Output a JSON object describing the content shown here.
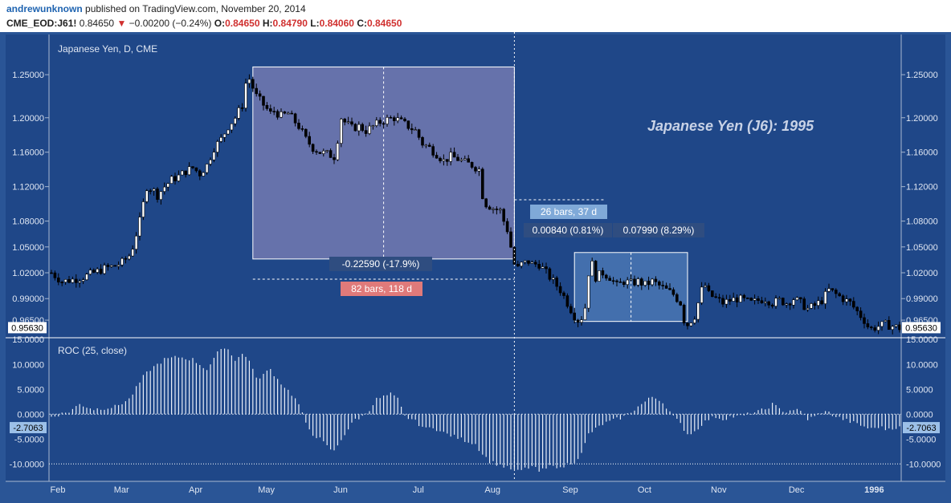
{
  "header": {
    "author": "andrewunknown",
    "published": "published on TradingView.com, November 20, 2014",
    "symbol": "CME_EOD:J61!",
    "last": "0.84650",
    "change_arrow": "▼",
    "change": "−0.00200 (−0.24%)",
    "o_label": "O:",
    "o": "0.84650",
    "h_label": "H:",
    "h": "0.84790",
    "l_label": "L:",
    "l": "0.84060",
    "c_label": "C:",
    "c": "0.84650"
  },
  "colors": {
    "background": "#1f4788",
    "border": "#a8b8d0",
    "candle_up": "#ffffff",
    "candle_down": "#000000",
    "text": "#dfe6f2",
    "label_box": "#ffffff",
    "down_label": "#e07a7a",
    "up_label": "#7fa9d8",
    "measure_box_down": "rgba(160,150,200,0.55)",
    "measure_box_up": "rgba(110,160,220,0.45)"
  },
  "chart_data": [
    {
      "type": "candlestick",
      "title": "Japanese Yen, D, CME",
      "annotation": "Japanese Yen (J6): 1995",
      "ylim": [
        0.9455,
        1.2715
      ],
      "y_ticks": [
        "1.25000",
        "1.20000",
        "1.16000",
        "1.12000",
        "1.08000",
        "1.05000",
        "1.02000",
        "0.99000",
        "0.96500"
      ],
      "x_ticks": [
        "Feb",
        "Mar",
        "Apr",
        "May",
        "Jun",
        "Jul",
        "Aug",
        "Sep",
        "Oct",
        "Nov",
        "Dec",
        "1996"
      ],
      "last_price_label": "0.95630",
      "close_path": [
        [
          0,
          1.02
        ],
        [
          3,
          1.01
        ],
        [
          6,
          1.012
        ],
        [
          9,
          1.015
        ],
        [
          12,
          1.02
        ],
        [
          15,
          1.025
        ],
        [
          18,
          1.028
        ],
        [
          20,
          1.032
        ],
        [
          22,
          1.04
        ],
        [
          23,
          1.05
        ],
        [
          24,
          1.065
        ],
        [
          25,
          1.08
        ],
        [
          26,
          1.1
        ],
        [
          27,
          1.12
        ],
        [
          28,
          1.118
        ],
        [
          29,
          1.115
        ],
        [
          30,
          1.11
        ],
        [
          32,
          1.12
        ],
        [
          34,
          1.128
        ],
        [
          36,
          1.132
        ],
        [
          38,
          1.138
        ],
        [
          40,
          1.142
        ],
        [
          42,
          1.135
        ],
        [
          44,
          1.145
        ],
        [
          46,
          1.165
        ],
        [
          48,
          1.175
        ],
        [
          50,
          1.19
        ],
        [
          52,
          1.2
        ],
        [
          54,
          1.215
        ],
        [
          55,
          1.24
        ],
        [
          56,
          1.245
        ],
        [
          57,
          1.235
        ],
        [
          58,
          1.225
        ],
        [
          60,
          1.215
        ],
        [
          61,
          1.21
        ],
        [
          62,
          1.205
        ],
        [
          63,
          1.208
        ],
        [
          65,
          1.202
        ],
        [
          67,
          1.205
        ],
        [
          68,
          1.2
        ],
        [
          70,
          1.19
        ],
        [
          72,
          1.175
        ],
        [
          74,
          1.165
        ],
        [
          76,
          1.16
        ],
        [
          78,
          1.158
        ],
        [
          80,
          1.155
        ],
        [
          81,
          1.175
        ],
        [
          82,
          1.2
        ],
        [
          83,
          1.195
        ],
        [
          85,
          1.188
        ],
        [
          87,
          1.19
        ],
        [
          89,
          1.185
        ],
        [
          91,
          1.19
        ],
        [
          93,
          1.195
        ],
        [
          95,
          1.198
        ],
        [
          97,
          1.2
        ],
        [
          99,
          1.195
        ],
        [
          101,
          1.19
        ],
        [
          103,
          1.185
        ],
        [
          105,
          1.17
        ],
        [
          107,
          1.165
        ],
        [
          109,
          1.158
        ],
        [
          111,
          1.15
        ],
        [
          113,
          1.155
        ],
        [
          115,
          1.152
        ],
        [
          117,
          1.148
        ],
        [
          119,
          1.145
        ],
        [
          121,
          1.14
        ],
        [
          122,
          1.11
        ],
        [
          123,
          1.1
        ],
        [
          125,
          1.095
        ],
        [
          127,
          1.092
        ],
        [
          128,
          1.08
        ],
        [
          129,
          1.07
        ],
        [
          130,
          1.05
        ],
        [
          131,
          1.03
        ],
        [
          132,
          1.025
        ],
        [
          133,
          1.03
        ],
        [
          135,
          1.033
        ],
        [
          136,
          1.03
        ],
        [
          138,
          1.03
        ],
        [
          139,
          1.025
        ],
        [
          140,
          1.02
        ],
        [
          142,
          1.01
        ],
        [
          144,
          1.0
        ],
        [
          146,
          0.985
        ],
        [
          148,
          0.97
        ],
        [
          149,
          0.965
        ],
        [
          150,
          0.968
        ],
        [
          151,
          0.98
        ],
        [
          152,
          1.02
        ],
        [
          153,
          1.03
        ],
        [
          154,
          1.015
        ],
        [
          156,
          1.02
        ],
        [
          158,
          1.015
        ],
        [
          160,
          1.005
        ],
        [
          162,
          1.01
        ],
        [
          164,
          1.008
        ],
        [
          166,
          1.01
        ],
        [
          168,
          1.006
        ],
        [
          170,
          1.01
        ],
        [
          172,
          1.005
        ],
        [
          174,
          1.0
        ],
        [
          176,
          0.995
        ],
        [
          178,
          0.985
        ],
        [
          179,
          0.965
        ],
        [
          180,
          0.96
        ],
        [
          182,
          0.97
        ],
        [
          183,
          0.985
        ],
        [
          184,
          1.0
        ],
        [
          185,
          1.005
        ],
        [
          186,
          0.995
        ],
        [
          188,
          0.99
        ],
        [
          190,
          0.985
        ],
        [
          192,
          0.988
        ],
        [
          194,
          0.99
        ],
        [
          196,
          0.988
        ],
        [
          198,
          0.985
        ],
        [
          200,
          0.988
        ],
        [
          202,
          0.99
        ],
        [
          204,
          0.985
        ],
        [
          206,
          0.988
        ],
        [
          208,
          0.985
        ],
        [
          210,
          0.99
        ],
        [
          212,
          0.985
        ],
        [
          214,
          0.978
        ],
        [
          216,
          0.982
        ],
        [
          218,
          0.988
        ],
        [
          220,
          1.0
        ],
        [
          222,
          0.995
        ],
        [
          224,
          0.99
        ],
        [
          226,
          0.985
        ],
        [
          228,
          0.975
        ],
        [
          230,
          0.965
        ],
        [
          231,
          0.958
        ],
        [
          232,
          0.955
        ],
        [
          234,
          0.958
        ],
        [
          236,
          0.96
        ],
        [
          238,
          0.958
        ],
        [
          240,
          0.956
        ]
      ],
      "measure_down": {
        "x_from": 57,
        "x_to": 131,
        "y_from": 1.259,
        "y_to": 1.036,
        "price_label": "-0.22590 (-17.9%)",
        "bars_label": "82 bars, 118 d"
      },
      "measure_up": {
        "x_from": 148,
        "x_to": 180,
        "y_from": 0.9635,
        "y_to": 1.0435,
        "price_label": "0.07990 (8.29%)",
        "price_label2": "0.00840 (0.81%)",
        "bars_label": "26 bars, 37 d"
      },
      "vline_x": 131
    },
    {
      "type": "bar",
      "title": "ROC (25, close)",
      "ylim": [
        -13.5,
        15.2
      ],
      "y_ticks": [
        "15.0000",
        "10.0000",
        "5.0000",
        "0.0000",
        "-5.0000",
        "-10.0000"
      ],
      "last_value_label": "-2.7063",
      "dotted_level": -10,
      "roc_path": [
        [
          0,
          -0.5
        ],
        [
          5,
          0.5
        ],
        [
          8,
          2.0
        ],
        [
          12,
          1.0
        ],
        [
          18,
          1.5
        ],
        [
          22,
          3.0
        ],
        [
          26,
          7.5
        ],
        [
          28,
          9.0
        ],
        [
          32,
          11.0
        ],
        [
          36,
          11.5
        ],
        [
          40,
          11.0
        ],
        [
          42,
          10.0
        ],
        [
          44,
          9.0
        ],
        [
          46,
          11.0
        ],
        [
          48,
          13.5
        ],
        [
          50,
          13.0
        ],
        [
          52,
          11.0
        ],
        [
          54,
          12.0
        ],
        [
          56,
          11.0
        ],
        [
          58,
          7.0
        ],
        [
          60,
          8.0
        ],
        [
          62,
          9.0
        ],
        [
          64,
          7.0
        ],
        [
          66,
          5.5
        ],
        [
          68,
          4.0
        ],
        [
          70,
          2.0
        ],
        [
          72,
          -2.0
        ],
        [
          74,
          -4.0
        ],
        [
          76,
          -5.0
        ],
        [
          78,
          -6.5
        ],
        [
          80,
          -7.5
        ],
        [
          82,
          -5.0
        ],
        [
          84,
          -3.0
        ],
        [
          86,
          -1.0
        ],
        [
          88,
          -0.5
        ],
        [
          90,
          1.0
        ],
        [
          92,
          3.0
        ],
        [
          94,
          3.5
        ],
        [
          96,
          4.0
        ],
        [
          98,
          3.0
        ],
        [
          100,
          -0.5
        ],
        [
          102,
          -1.0
        ],
        [
          104,
          -2.0
        ],
        [
          106,
          -3.0
        ],
        [
          108,
          -2.5
        ],
        [
          110,
          -3.5
        ],
        [
          112,
          -4.0
        ],
        [
          114,
          -4.5
        ],
        [
          116,
          -5.0
        ],
        [
          118,
          -5.5
        ],
        [
          120,
          -6.0
        ],
        [
          122,
          -8.0
        ],
        [
          124,
          -9.5
        ],
        [
          126,
          -10.0
        ],
        [
          128,
          -10.5
        ],
        [
          130,
          -11.0
        ],
        [
          132,
          -11.5
        ],
        [
          134,
          -11.0
        ],
        [
          136,
          -10.5
        ],
        [
          138,
          -11.5
        ],
        [
          140,
          -11.0
        ],
        [
          142,
          -10.0
        ],
        [
          144,
          -11.0
        ],
        [
          146,
          -10.0
        ],
        [
          148,
          -9.5
        ],
        [
          150,
          -8.0
        ],
        [
          152,
          -4.0
        ],
        [
          154,
          -3.0
        ],
        [
          156,
          -2.0
        ],
        [
          158,
          -1.5
        ],
        [
          160,
          -1.0
        ],
        [
          162,
          -0.5
        ],
        [
          164,
          0.5
        ],
        [
          166,
          1.5
        ],
        [
          168,
          2.5
        ],
        [
          170,
          3.5
        ],
        [
          172,
          3.0
        ],
        [
          174,
          1.5
        ],
        [
          176,
          -0.5
        ],
        [
          178,
          -2.0
        ],
        [
          180,
          -4.0
        ],
        [
          182,
          -3.5
        ],
        [
          184,
          -2.0
        ],
        [
          186,
          -1.0
        ],
        [
          188,
          -0.5
        ],
        [
          190,
          -1.0
        ],
        [
          192,
          -0.5
        ],
        [
          194,
          -0.5
        ],
        [
          196,
          -0.3
        ],
        [
          198,
          0.2
        ],
        [
          200,
          0.5
        ],
        [
          202,
          1.0
        ],
        [
          204,
          2.0
        ],
        [
          206,
          1.0
        ],
        [
          208,
          0.5
        ],
        [
          210,
          1.0
        ],
        [
          212,
          0.5
        ],
        [
          214,
          -1.0
        ],
        [
          216,
          -0.5
        ],
        [
          218,
          0.5
        ],
        [
          220,
          0.3
        ],
        [
          222,
          -0.5
        ],
        [
          224,
          -1.0
        ],
        [
          226,
          -1.5
        ],
        [
          228,
          -2.0
        ],
        [
          230,
          -2.5
        ],
        [
          232,
          -3.0
        ],
        [
          234,
          -2.5
        ],
        [
          236,
          -3.0
        ],
        [
          238,
          -2.7
        ],
        [
          240,
          -2.7
        ]
      ]
    }
  ]
}
